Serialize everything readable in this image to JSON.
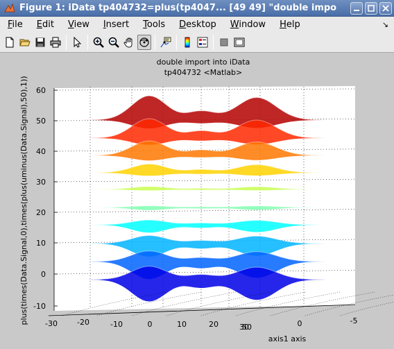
{
  "window": {
    "title": "Figure 1: iData tp404732=plus(tp4047... [49  49] \"double impo"
  },
  "menu": {
    "items": [
      {
        "key": "file",
        "pre": "",
        "u": "F",
        "post": "ile"
      },
      {
        "key": "edit",
        "pre": "",
        "u": "E",
        "post": "dit"
      },
      {
        "key": "view",
        "pre": "",
        "u": "V",
        "post": "iew"
      },
      {
        "key": "insert",
        "pre": "",
        "u": "I",
        "post": "nsert"
      },
      {
        "key": "tools",
        "pre": "",
        "u": "T",
        "post": "ools"
      },
      {
        "key": "desktop",
        "pre": "",
        "u": "D",
        "post": "esktop"
      },
      {
        "key": "window",
        "pre": "",
        "u": "W",
        "post": "indow"
      },
      {
        "key": "help",
        "pre": "",
        "u": "H",
        "post": "elp"
      }
    ],
    "dock_arrow": "↘"
  },
  "toolbar": {
    "tools": [
      "new-figure",
      "open-file",
      "save-figure",
      "print-figure",
      "edit-plot",
      "zoom-in",
      "zoom-out",
      "pan",
      "rotate-3d",
      "data-cursor",
      "colorbar",
      "legend",
      "hide-plot-tools",
      "show-plot-tools"
    ],
    "active_tool": "rotate-3d"
  },
  "plot": {
    "title_line1": "double import into iData",
    "title_line2": "tp404732 <Matlab>",
    "zlabel": "plus(times(Data.Signal,0),times(plus(uminus(Data.Signal),50),1))",
    "xlabel": "axis1 axis",
    "z_ticks": [
      "60",
      "50",
      "40",
      "30",
      "20",
      "10",
      "0",
      "-10"
    ],
    "x_ticks": [
      "-30",
      "-20",
      "-10",
      "0",
      "10",
      "20",
      "30",
      "50",
      "0",
      "-5"
    ],
    "view": "3-D surface, rotated",
    "colormap": "jet",
    "grid": true,
    "background": "#ffffff",
    "figure_color": "#c9c9c9"
  }
}
